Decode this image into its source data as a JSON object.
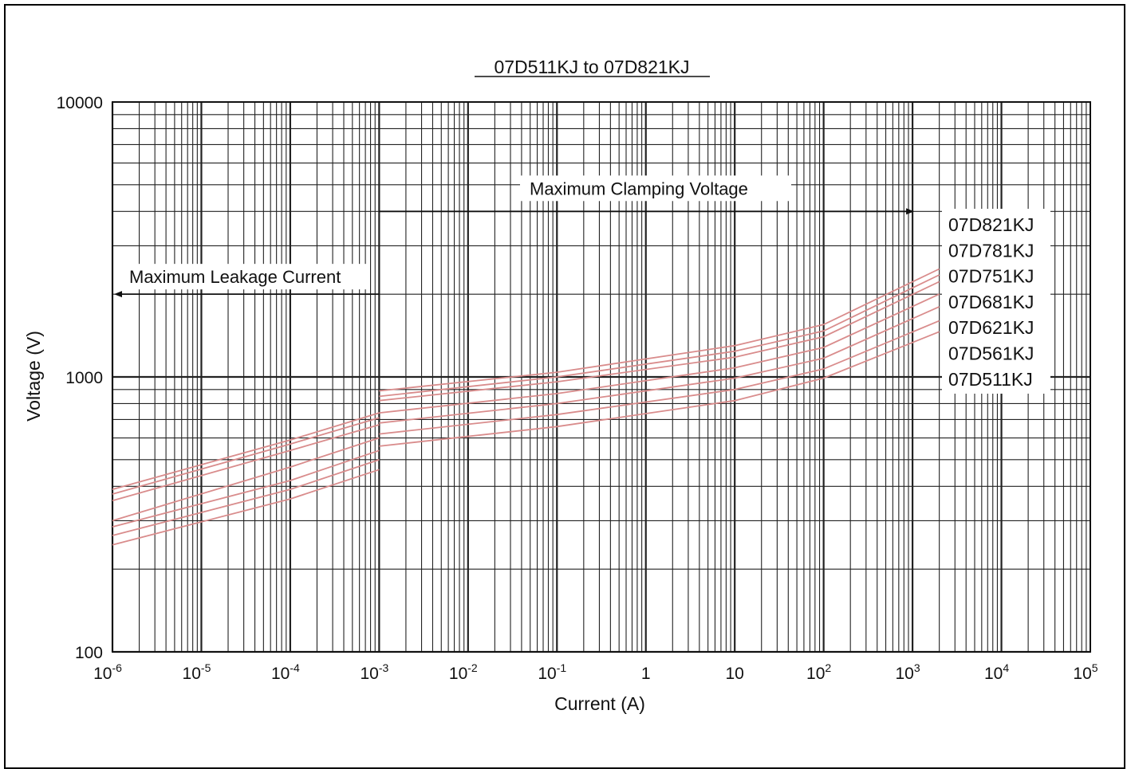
{
  "chart_data": {
    "type": "line",
    "title": "07D511KJ to 07D821KJ",
    "xlabel": "Current (A)",
    "ylabel": "Voltage (V)",
    "xscale": "log",
    "yscale": "log",
    "xlim": [
      1e-06,
      100000
    ],
    "ylim": [
      100,
      10000
    ],
    "grid": true,
    "xticks": [
      {
        "value": 1e-06,
        "base": "10",
        "exp": "-6"
      },
      {
        "value": 1e-05,
        "base": "10",
        "exp": "-5"
      },
      {
        "value": 0.0001,
        "base": "10",
        "exp": "-4"
      },
      {
        "value": 0.001,
        "base": "10",
        "exp": "-3"
      },
      {
        "value": 0.01,
        "base": "10",
        "exp": "-2"
      },
      {
        "value": 0.1,
        "base": "10",
        "exp": "-1"
      },
      {
        "value": 1,
        "base": "1",
        "exp": ""
      },
      {
        "value": 10,
        "base": "10",
        "exp": ""
      },
      {
        "value": 100,
        "base": "10",
        "exp": "2"
      },
      {
        "value": 1000,
        "base": "10",
        "exp": "3"
      },
      {
        "value": 10000,
        "base": "10",
        "exp": "4"
      },
      {
        "value": 100000,
        "base": "10",
        "exp": "5"
      }
    ],
    "yticks": [
      {
        "value": 100,
        "label": "100"
      },
      {
        "value": 1000,
        "label": "1000"
      },
      {
        "value": 10000,
        "label": "10000"
      }
    ],
    "annotations": [
      {
        "text": "Maximum Leakage Current",
        "arrow_from": [
          0.001,
          2000
        ],
        "arrow_to": [
          1e-06,
          2000
        ]
      },
      {
        "text": "Maximum Clamping Voltage",
        "arrow_from": [
          0.001,
          4000
        ],
        "arrow_to": [
          1000,
          4000
        ]
      }
    ],
    "legend_placement": "right",
    "series_color": "#d98c8c",
    "series": [
      {
        "name": "07D821KJ",
        "leakage": {
          "x": [
            1e-06,
            0.0001,
            0.001
          ],
          "y": [
            390,
            590,
            740
          ]
        },
        "clamping": {
          "x": [
            0.001,
            0.1,
            10,
            100,
            2000
          ],
          "y": [
            890,
            1040,
            1300,
            1550,
            2470
          ]
        }
      },
      {
        "name": "07D781KJ",
        "leakage": {
          "x": [
            1e-06,
            0.0001,
            0.001
          ],
          "y": [
            375,
            570,
            710
          ]
        },
        "clamping": {
          "x": [
            0.001,
            0.1,
            10,
            100,
            2000
          ],
          "y": [
            850,
            1000,
            1240,
            1470,
            2350
          ]
        }
      },
      {
        "name": "07D751KJ",
        "leakage": {
          "x": [
            1e-06,
            0.0001,
            0.001
          ],
          "y": [
            355,
            540,
            670
          ]
        },
        "clamping": {
          "x": [
            0.001,
            0.1,
            10,
            100,
            2000
          ],
          "y": [
            820,
            960,
            1180,
            1400,
            2220
          ]
        }
      },
      {
        "name": "07D681KJ",
        "leakage": {
          "x": [
            1e-06,
            0.0001,
            0.001
          ],
          "y": [
            300,
            470,
            600
          ]
        },
        "clamping": {
          "x": [
            0.001,
            0.1,
            10,
            100,
            2000
          ],
          "y": [
            740,
            870,
            1080,
            1280,
            2000
          ]
        }
      },
      {
        "name": "07D621KJ",
        "leakage": {
          "x": [
            1e-06,
            0.0001,
            0.001
          ],
          "y": [
            285,
            420,
            540
          ]
        },
        "clamping": {
          "x": [
            0.001,
            0.1,
            10,
            100,
            2000
          ],
          "y": [
            680,
            800,
            990,
            1170,
            1800
          ]
        }
      },
      {
        "name": "07D561KJ",
        "leakage": {
          "x": [
            1e-06,
            0.0001,
            0.001
          ],
          "y": [
            265,
            390,
            500
          ]
        },
        "clamping": {
          "x": [
            0.001,
            0.1,
            10,
            100,
            2000
          ],
          "y": [
            620,
            730,
            900,
            1070,
            1600
          ]
        }
      },
      {
        "name": "07D511KJ",
        "leakage": {
          "x": [
            1e-06,
            0.0001,
            0.001
          ],
          "y": [
            245,
            360,
            460
          ]
        },
        "clamping": {
          "x": [
            0.001,
            0.1,
            10,
            100,
            2000
          ],
          "y": [
            560,
            660,
            820,
            990,
            1460
          ]
        }
      }
    ]
  }
}
